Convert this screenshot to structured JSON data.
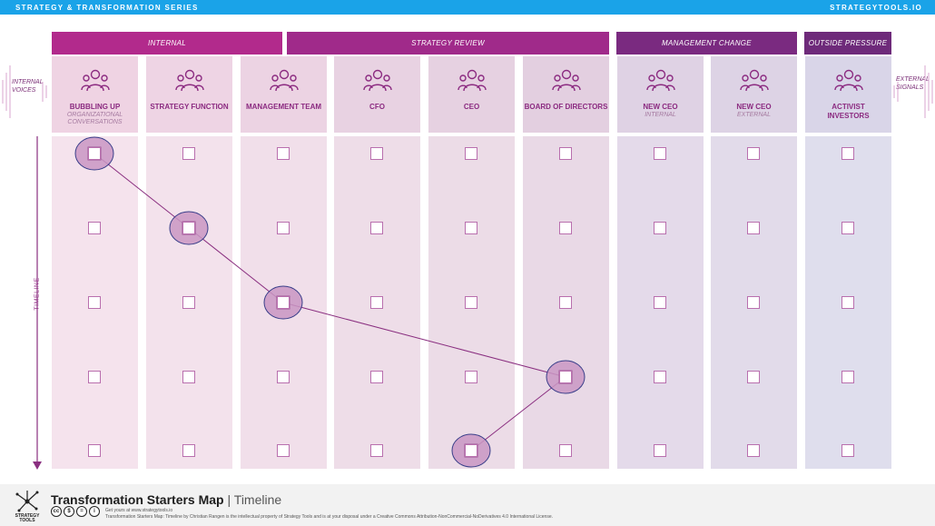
{
  "header": {
    "series": "STRATEGY & TRANSFORMATION SERIES",
    "site": "STRATEGYTOOLS.IO"
  },
  "groups": [
    {
      "label": "INTERNAL",
      "color": "#b22a8c"
    },
    {
      "label": "STRATEGY REVIEW",
      "color": "#a02a8a"
    },
    {
      "label": "MANAGEMENT CHANGE",
      "color": "#7a2a80"
    },
    {
      "label": "OUTSIDE PRESSURE",
      "color": "#6e2a7a"
    }
  ],
  "columns": [
    {
      "title": "BUBBLING UP",
      "subtitle": "ORGANIZATIONAL CONVERSATIONS",
      "icon": "people-talking-icon",
      "head_color": "#efd3e3",
      "body_color": "#f5e3ed"
    },
    {
      "title": "STRATEGY FUNCTION",
      "subtitle": "",
      "icon": "chess-knight-team-icon",
      "head_color": "#eed4e4",
      "body_color": "#f3e2ec"
    },
    {
      "title": "MANAGEMENT TEAM",
      "subtitle": "",
      "icon": "org-hierarchy-icon",
      "head_color": "#ecd3e3",
      "body_color": "#f1dfea"
    },
    {
      "title": "CFO",
      "subtitle": "",
      "icon": "finance-person-icon",
      "head_color": "#e8d2e2",
      "body_color": "#eedde8"
    },
    {
      "title": "CEO",
      "subtitle": "",
      "icon": "executive-gear-icon",
      "head_color": "#e6d1e1",
      "body_color": "#ecdce7"
    },
    {
      "title": "BOARD OF DIRECTORS",
      "subtitle": "",
      "icon": "board-table-icon",
      "head_color": "#e3cfe0",
      "body_color": "#e9d9e6"
    },
    {
      "title": "NEW CEO",
      "subtitle": "INTERNAL",
      "icon": "new-ceo-internal-icon",
      "head_color": "#dfd2e4",
      "body_color": "#e4daea"
    },
    {
      "title": "NEW CEO",
      "subtitle": "EXTERNAL",
      "icon": "network-person-icon",
      "head_color": "#ddd3e5",
      "body_color": "#e2dbea"
    },
    {
      "title": "ACTIVIST",
      "subtitle": "INVESTORS",
      "icon": "investor-group-icon",
      "head_color": "#d9d5e8",
      "body_color": "#dfdeed"
    }
  ],
  "side_labels": {
    "left": "INTERNAL VOICES",
    "right": "EXTERNAL SIGNALS",
    "timeline": "TIMELINE"
  },
  "timeline_rows": 5,
  "path": [
    {
      "column": 1,
      "row": 1
    },
    {
      "column": 2,
      "row": 2
    },
    {
      "column": 3,
      "row": 3
    },
    {
      "column": 6,
      "row": 4
    },
    {
      "column": 5,
      "row": 5
    }
  ],
  "footer": {
    "title": "Transformation Starters Map",
    "separator": "|",
    "subtitle": "Timeline",
    "getyours": "Get yours at www.strategytools.io",
    "license": "Transformation Starters Map: Timeline by Christian Rangen is the intellectual property of Strategy Tools and is at your disposal under a Creative Commons Attribution-NonCommercial-NoDerivatives 4.0 International License.",
    "logo_text": "STRATEGY TOOLS",
    "cc_icons": [
      "cc",
      "$",
      "=",
      "i"
    ]
  },
  "colors": {
    "accent": "#1aa3e8",
    "path_line": "#8a2f80",
    "marker_fill": "#c996c3",
    "marker_stroke": "#3a3f8a"
  }
}
